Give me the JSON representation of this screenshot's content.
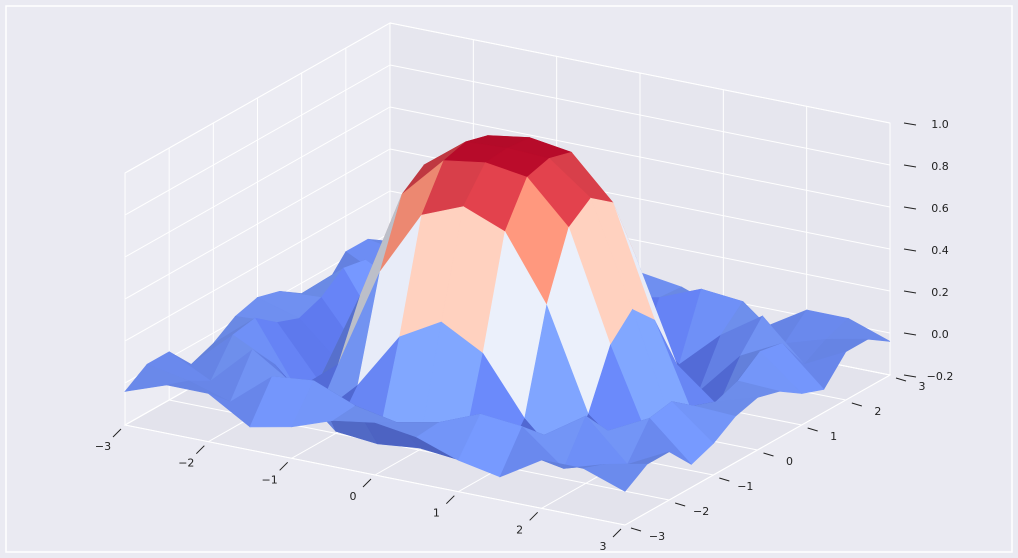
{
  "chart_data": {
    "type": "surface",
    "x": [
      -3,
      -2.5,
      -2,
      -1.5,
      -1,
      -0.5,
      0,
      0.5,
      1,
      1.5,
      2,
      2.5,
      3
    ],
    "y": [
      -3,
      -2.5,
      -2,
      -1.5,
      -1,
      -0.5,
      0,
      0.5,
      1,
      1.5,
      2,
      2.5,
      3
    ],
    "z": [
      [
        -0.04,
        0.03,
        0.03,
        -0.09,
        -0.05,
        0.02,
        0.05,
        0.02,
        -0.05,
        -0.09,
        0.03,
        0.03,
        -0.04
      ],
      [
        0.03,
        -0.01,
        -0.07,
        0.09,
        0.11,
        0.03,
        -0.01,
        0.03,
        0.11,
        0.09,
        -0.07,
        -0.01,
        0.03
      ],
      [
        0.03,
        -0.07,
        0.12,
        -0.01,
        -0.19,
        -0.21,
        -0.19,
        -0.21,
        -0.19,
        -0.01,
        0.12,
        -0.07,
        0.03
      ],
      [
        -0.09,
        0.09,
        -0.01,
        -0.22,
        -0.03,
        0.24,
        0.35,
        0.24,
        -0.03,
        -0.22,
        -0.01,
        0.09,
        -0.09
      ],
      [
        -0.05,
        0.11,
        -0.19,
        -0.03,
        0.45,
        0.76,
        0.84,
        0.76,
        0.45,
        -0.03,
        -0.19,
        0.11,
        -0.05
      ],
      [
        0.02,
        0.03,
        -0.21,
        0.24,
        0.76,
        0.96,
        0.99,
        0.96,
        0.76,
        0.24,
        -0.21,
        0.03,
        0.02
      ],
      [
        0.05,
        -0.01,
        -0.19,
        0.35,
        0.84,
        0.99,
        1,
        0.99,
        0.84,
        0.35,
        -0.19,
        -0.01,
        0.05
      ],
      [
        0.02,
        0.03,
        -0.21,
        0.24,
        0.76,
        0.96,
        0.99,
        0.96,
        0.76,
        0.24,
        -0.21,
        0.03,
        0.02
      ],
      [
        -0.05,
        0.11,
        -0.19,
        -0.03,
        0.45,
        0.76,
        0.84,
        0.76,
        0.45,
        -0.03,
        -0.19,
        0.11,
        -0.05
      ],
      [
        -0.09,
        0.09,
        -0.01,
        -0.22,
        -0.03,
        0.24,
        0.35,
        0.24,
        -0.03,
        -0.22,
        -0.01,
        0.09,
        -0.09
      ],
      [
        0.03,
        -0.07,
        0.12,
        -0.01,
        -0.19,
        -0.21,
        -0.19,
        -0.21,
        -0.19,
        -0.01,
        0.12,
        -0.07,
        0.03
      ],
      [
        0.03,
        -0.01,
        -0.07,
        0.09,
        0.11,
        0.03,
        -0.01,
        0.03,
        0.11,
        0.09,
        -0.07,
        -0.01,
        0.03
      ],
      [
        -0.04,
        0.03,
        0.03,
        -0.09,
        -0.05,
        0.02,
        0.05,
        0.02,
        -0.05,
        -0.09,
        0.03,
        0.03,
        -0.04
      ]
    ],
    "colormap": [
      "#3b4cc0",
      "#7b9ff9",
      "#dddddd",
      "#f49a7b",
      "#b40426"
    ],
    "xlim": [
      -3,
      3
    ],
    "ylim": [
      -3,
      3
    ],
    "zlim": [
      -0.2,
      1
    ],
    "xticks": [
      {
        "value": -3,
        "label": "−3"
      },
      {
        "value": -2,
        "label": "−2"
      },
      {
        "value": -1,
        "label": "−1"
      },
      0,
      1,
      2,
      3
    ],
    "yticks": [
      {
        "value": -3,
        "label": "−3"
      },
      {
        "value": -2,
        "label": "−2"
      },
      {
        "value": -1,
        "label": "−1"
      },
      0,
      1,
      2,
      3
    ],
    "zticks": [
      {
        "value": -0.2,
        "label": "−0.2"
      },
      {
        "value": 0,
        "label": "0.0"
      },
      {
        "value": 0.2,
        "label": "0.2"
      },
      {
        "value": 0.4,
        "label": "0.4"
      },
      {
        "value": 0.6,
        "label": "0.6"
      },
      {
        "value": 0.8,
        "label": "0.8"
      },
      {
        "value": 1,
        "label": "1.0"
      }
    ],
    "grid": true
  }
}
